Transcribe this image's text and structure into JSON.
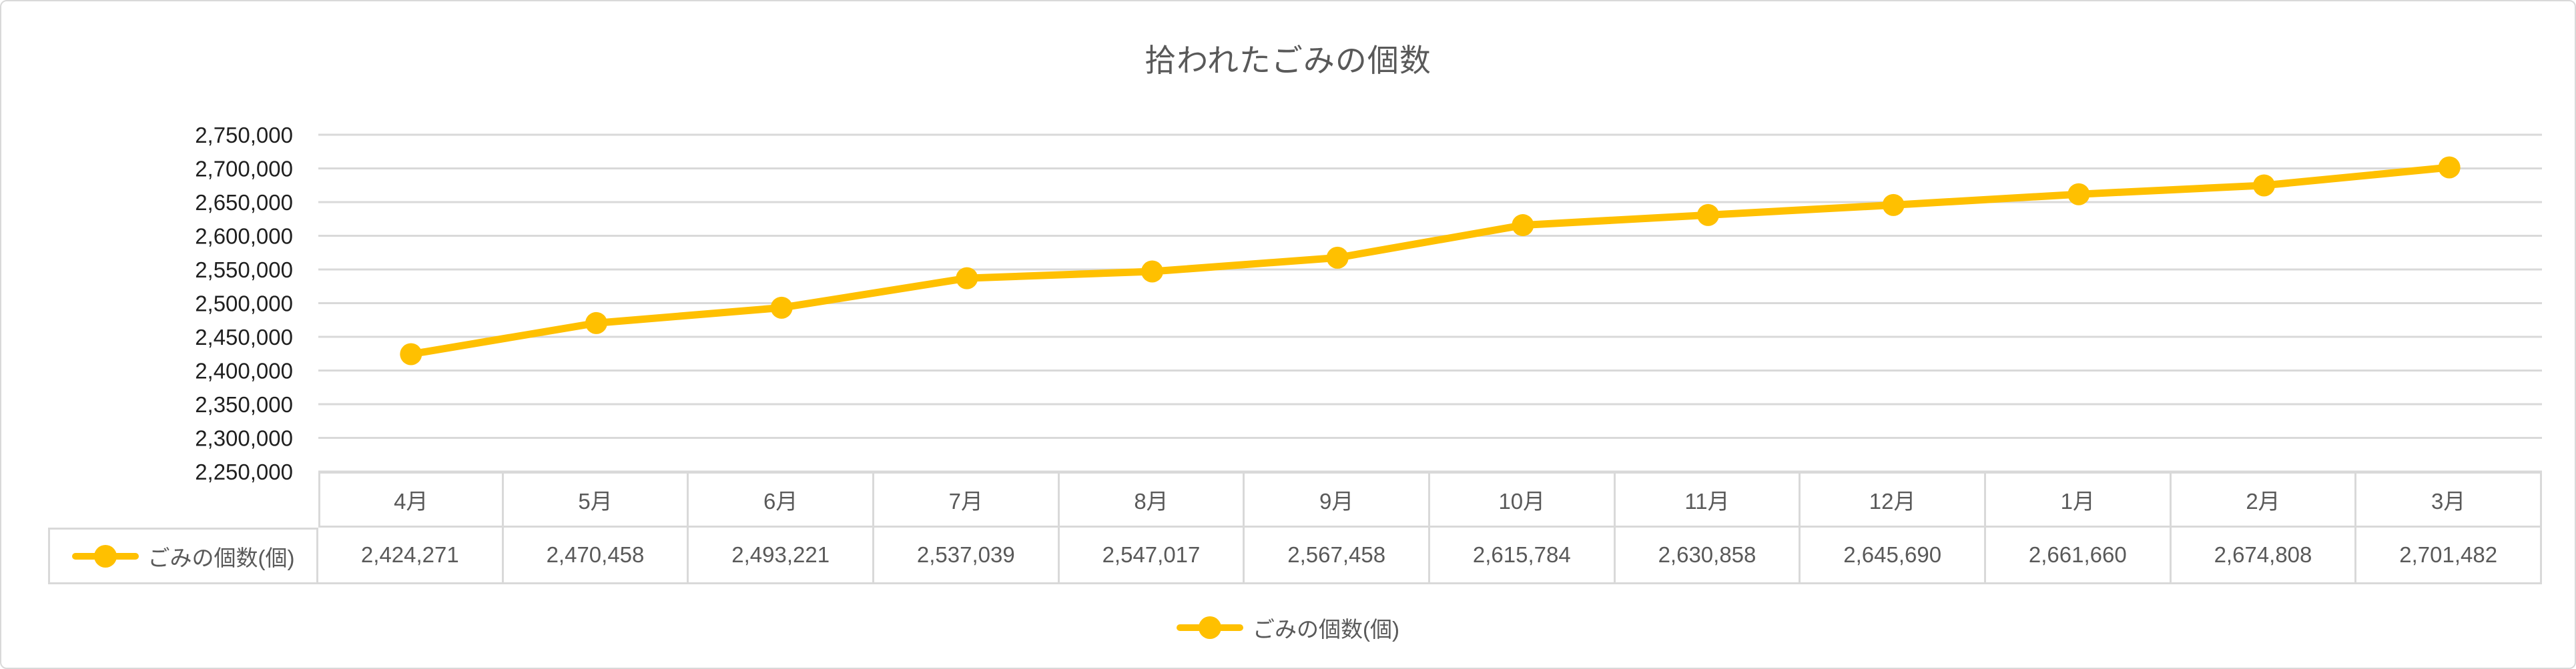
{
  "title": "拾われたごみの個数",
  "colors": {
    "series": "#FFC000",
    "grid": "#D9D9D9",
    "table_border": "#D9D9D9",
    "title_text": "#595959",
    "axis_text": "#1f1f1f",
    "table_text": "#595959",
    "background": "#ffffff"
  },
  "legend": {
    "label": "ごみの個数(個)",
    "position": "bottom"
  },
  "chart_data": {
    "type": "line",
    "title": "拾われたごみの個数",
    "categories": [
      "4月",
      "5月",
      "6月",
      "7月",
      "8月",
      "9月",
      "10月",
      "11月",
      "12月",
      "1月",
      "2月",
      "3月"
    ],
    "series": [
      {
        "name": "ごみの個数(個)",
        "color": "#FFC000",
        "marker": "circle",
        "values": [
          2424271,
          2470458,
          2493221,
          2537039,
          2547017,
          2567458,
          2615784,
          2630858,
          2645690,
          2661660,
          2674808,
          2701482
        ],
        "values_formatted": [
          "2,424,271",
          "2,470,458",
          "2,493,221",
          "2,537,039",
          "2,547,017",
          "2,567,458",
          "2,615,784",
          "2,630,858",
          "2,645,690",
          "2,661,660",
          "2,674,808",
          "2,701,482"
        ]
      }
    ],
    "xlabel": "",
    "ylabel": "",
    "ylim": [
      2250000,
      2750000
    ],
    "ytick_step": 50000,
    "ytick_labels_top_to_bottom": [
      "2,750,000",
      "2,700,000",
      "2,650,000",
      "2,600,000",
      "2,550,000",
      "2,500,000",
      "2,450,000",
      "2,400,000",
      "2,350,000",
      "2,300,000",
      "2,250,000"
    ],
    "grid": true,
    "legend_position": "bottom",
    "data_table_shown": true
  }
}
